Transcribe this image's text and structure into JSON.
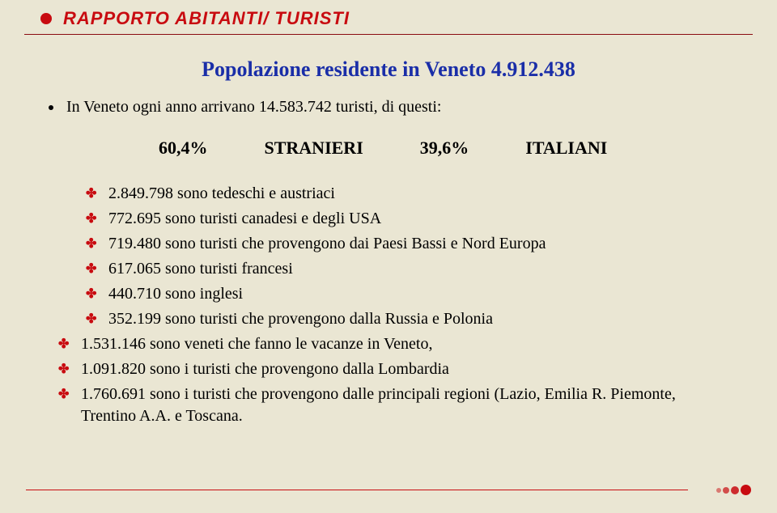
{
  "header": {
    "title": "RAPPORTO ABITANTI/ TURISTI"
  },
  "subtitle": "Popolazione residente in Veneto 4.912.438",
  "intro": "In Veneto ogni anno arrivano 14.583.742 turisti, di questi:",
  "percent": {
    "p1": "60,4%",
    "l1": "STRANIERI",
    "p2": "39,6%",
    "l2": "ITALIANI"
  },
  "stats": [
    {
      "indent": true,
      "text": "2.849.798 sono tedeschi e austriaci"
    },
    {
      "indent": true,
      "text": "772.695 sono turisti canadesi e degli USA"
    },
    {
      "indent": true,
      "text": "719.480 sono turisti che provengono dai Paesi Bassi e Nord Europa"
    },
    {
      "indent": true,
      "text": "617.065 sono turisti francesi"
    },
    {
      "indent": true,
      "text": "440.710 sono inglesi"
    },
    {
      "indent": true,
      "text": "352.199 sono turisti che provengono dalla Russia e Polonia"
    },
    {
      "indent": false,
      "text": "1.531.146 sono veneti che fanno le vacanze in Veneto,"
    },
    {
      "indent": false,
      "text": "1.091.820 sono i turisti che provengono dalla Lombardia"
    },
    {
      "indent": false,
      "text": "1.760.691 sono i turisti che provengono dalle principali regioni (Lazio, Emilia R. Piemonte, Trentino A.A. e Toscana."
    }
  ],
  "colors": {
    "bg": "#eae6d3",
    "red": "#c80b10",
    "blue": "#1a2ea8"
  }
}
